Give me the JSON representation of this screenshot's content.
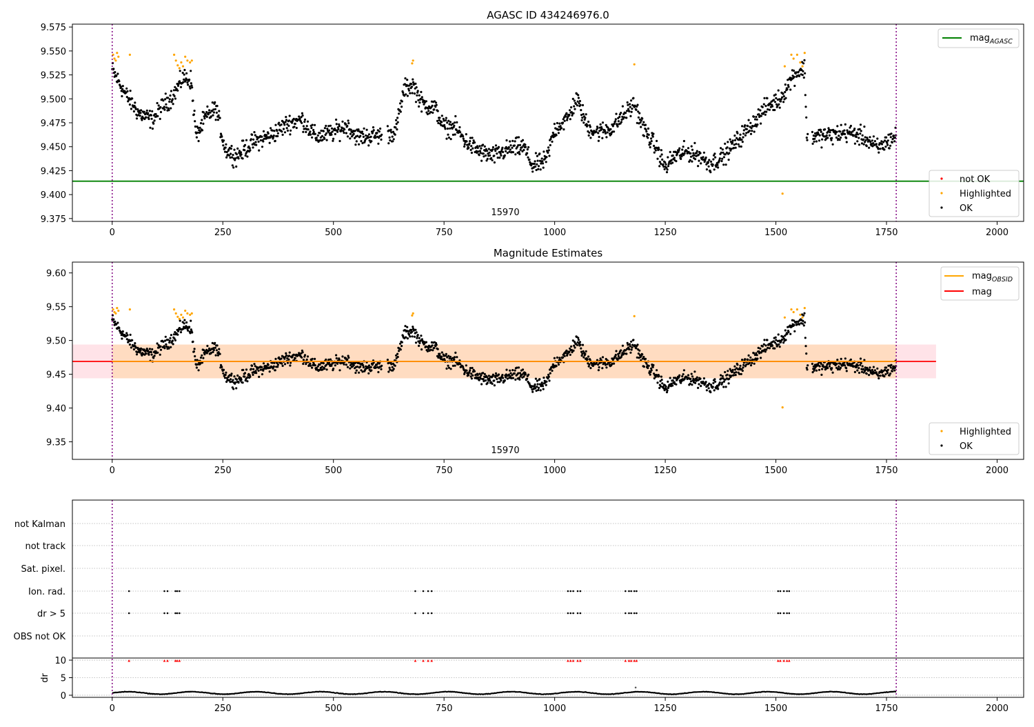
{
  "chart_data": [
    {
      "type": "scatter",
      "title": "AGASC ID 434246976.0",
      "xlim": [
        -90,
        2060
      ],
      "ylim": [
        9.372,
        9.578
      ],
      "xticks": [
        "0",
        "250",
        "500",
        "750",
        "1000",
        "1250",
        "1500",
        "1750",
        "2000"
      ],
      "yticks": [
        "9.375",
        "9.400",
        "9.425",
        "9.450",
        "9.475",
        "9.500",
        "9.525",
        "9.550",
        "9.575"
      ],
      "obsid_label": "15970",
      "obs_bounds": [
        0,
        1772
      ],
      "reference_line": {
        "name": "mag_AGASC",
        "value": 9.414,
        "color": "#008000"
      },
      "legend_top": [
        {
          "label": "mag",
          "sub": "AGASC",
          "color": "#008000"
        }
      ],
      "legend_bottom": [
        {
          "label": "not OK",
          "color": "#ff0000"
        },
        {
          "label": "Highlighted",
          "color": "#ffa500"
        },
        {
          "label": "OK",
          "color": "#000000"
        }
      ],
      "series_notes": "Dense time series of ~1770 OK points (black) oscillating between ~9.42 and ~9.53; highlighted points (orange) at peaks near x≈0-45, 140-175, 680, 1180, 1520-1565; one outlier at (1515, 9.401)."
    },
    {
      "type": "scatter",
      "title": "Magnitude Estimates",
      "xlim": [
        -90,
        2060
      ],
      "ylim": [
        9.324,
        9.616
      ],
      "xticks": [
        "0",
        "250",
        "500",
        "750",
        "1000",
        "1250",
        "1500",
        "1750",
        "2000"
      ],
      "yticks": [
        "9.35",
        "9.40",
        "9.45",
        "9.50",
        "9.55",
        "9.60"
      ],
      "obsid_label": "15970",
      "obs_bounds": [
        0,
        1772
      ],
      "mag_line": {
        "name": "mag",
        "value": 9.469,
        "color": "#ff0000"
      },
      "mag_obsid_line": {
        "name": "mag_OBSID",
        "value": 9.469,
        "color": "#ffa500",
        "x_range": [
          0,
          1772
        ]
      },
      "mag_band": {
        "low": 9.444,
        "high": 9.494,
        "x_range": [
          -90,
          1862
        ],
        "color": "#ffc0cb"
      },
      "obsid_band": {
        "low": 9.444,
        "high": 9.494,
        "x_range": [
          0,
          1772
        ],
        "color": "#ffd8b0"
      },
      "legend_top": [
        {
          "label": "mag",
          "sub": "OBSID",
          "color": "#ffa500"
        },
        {
          "label": "mag",
          "sub": "",
          "color": "#ff0000"
        }
      ],
      "legend_bottom": [
        {
          "label": "Highlighted",
          "color": "#ffa500"
        },
        {
          "label": "OK",
          "color": "#000000"
        }
      ]
    },
    {
      "type": "scatter",
      "title": "",
      "flag_rows": [
        "not Kalman",
        "not track",
        "Sat. pixel.",
        "Ion. rad.",
        "dr > 5",
        "OBS not OK"
      ],
      "flag_events_x": [
        38,
        118,
        125,
        143,
        147,
        152,
        685,
        703,
        714,
        722,
        1030,
        1036,
        1042,
        1052,
        1058,
        1160,
        1168,
        1173,
        1180,
        1185,
        1505,
        1510,
        1518,
        1525,
        1530
      ],
      "dr_ylabel": "dr",
      "dr_yticks": [
        "0",
        "5",
        "10"
      ],
      "dr_ylim": [
        -0.6,
        10.6
      ],
      "xticks": [
        "0",
        "250",
        "500",
        "750",
        "1000",
        "1250",
        "1500",
        "1750",
        "2000"
      ],
      "obs_bounds": [
        0,
        1772
      ]
    }
  ]
}
